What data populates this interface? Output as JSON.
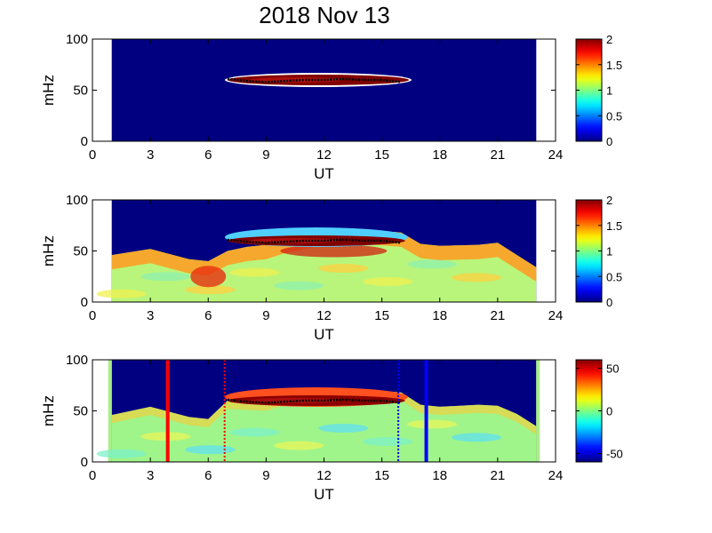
{
  "figure": {
    "title": "2018 Nov 13"
  },
  "chart_data": [
    {
      "type": "heatmap",
      "xlabel": "UT",
      "ylabel": "mHz",
      "xlim": [
        0,
        24
      ],
      "ylim": [
        0,
        100
      ],
      "xticks": [
        "0",
        "3",
        "6",
        "9",
        "12",
        "15",
        "18",
        "21",
        "24"
      ],
      "yticks": [
        "0",
        "50",
        "100"
      ],
      "data_range_ut": [
        1,
        23
      ],
      "colorbar": {
        "colormap": "jet",
        "range": [
          0,
          2
        ],
        "ticks": [
          "0",
          "0.5",
          "1",
          "1.5",
          "2"
        ]
      },
      "features": [
        {
          "kind": "band",
          "ut": [
            7.0,
            16.4
          ],
          "freq_center": 60,
          "value": 2.0
        }
      ],
      "trace": [
        [
          7.0,
          61
        ],
        [
          8.0,
          59
        ],
        [
          9.0,
          58
        ],
        [
          10.0,
          59
        ],
        [
          11.0,
          60
        ],
        [
          12.0,
          60
        ],
        [
          13.0,
          61
        ],
        [
          14.0,
          60
        ],
        [
          15.0,
          60
        ],
        [
          16.0,
          58
        ]
      ]
    },
    {
      "type": "heatmap",
      "xlabel": "UT",
      "ylabel": "mHz",
      "xlim": [
        0,
        24
      ],
      "ylim": [
        0,
        100
      ],
      "xticks": [
        "0",
        "3",
        "6",
        "9",
        "12",
        "15",
        "18",
        "21",
        "24"
      ],
      "yticks": [
        "0",
        "50",
        "100"
      ],
      "data_range_ut": [
        1,
        23
      ],
      "colorbar": {
        "colormap": "jet",
        "range": [
          0,
          2
        ],
        "ticks": [
          "0",
          "0.5",
          "1",
          "1.5",
          "2"
        ]
      },
      "features": [
        {
          "kind": "upper_boundary",
          "points": [
            [
              1,
              46
            ],
            [
              3,
              52
            ],
            [
              5,
              42
            ],
            [
              6,
              40
            ],
            [
              7,
              50
            ],
            [
              8,
              54
            ],
            [
              9,
              56
            ],
            [
              10,
              62
            ],
            [
              12,
              70
            ],
            [
              14,
              71
            ],
            [
              16,
              68
            ],
            [
              17,
              57
            ],
            [
              18,
              55
            ],
            [
              20,
              56
            ],
            [
              21,
              58
            ],
            [
              22,
              46
            ],
            [
              23,
              34
            ]
          ]
        },
        {
          "kind": "band",
          "ut": [
            7.0,
            16.2
          ],
          "freq_center": 60,
          "value": 2.0
        }
      ],
      "trace": [
        [
          7.0,
          61
        ],
        [
          8.0,
          59
        ],
        [
          9.0,
          58
        ],
        [
          10.0,
          59
        ],
        [
          11.0,
          60
        ],
        [
          12.0,
          60
        ],
        [
          13.0,
          61
        ],
        [
          14.0,
          60
        ],
        [
          15.0,
          60
        ],
        [
          16.0,
          58
        ]
      ]
    },
    {
      "type": "heatmap",
      "xlabel": "UT",
      "ylabel": "mHz",
      "xlim": [
        0,
        24
      ],
      "ylim": [
        0,
        100
      ],
      "xticks": [
        "0",
        "3",
        "6",
        "9",
        "12",
        "15",
        "18",
        "21",
        "24"
      ],
      "yticks": [
        "0",
        "50",
        "100"
      ],
      "data_range_ut": [
        1,
        23
      ],
      "colorbar": {
        "colormap": "jet",
        "range": [
          -60,
          60
        ],
        "ticks": [
          "50",
          "0",
          "-50"
        ]
      },
      "features": [
        {
          "kind": "upper_boundary",
          "points": [
            [
              1,
              46
            ],
            [
              3,
              54
            ],
            [
              5,
              44
            ],
            [
              6,
              42
            ],
            [
              7,
              60
            ],
            [
              9,
              58
            ],
            [
              10,
              64
            ],
            [
              12,
              72
            ],
            [
              14,
              71
            ],
            [
              16,
              68
            ],
            [
              17,
              56
            ],
            [
              18,
              54
            ],
            [
              20,
              56
            ],
            [
              21,
              55
            ],
            [
              22,
              47
            ],
            [
              23,
              35
            ]
          ]
        },
        {
          "kind": "band",
          "ut": [
            7.0,
            16.2
          ],
          "freq_center": 60,
          "value": 60
        }
      ],
      "vlines": [
        {
          "ut": 3.9,
          "style": "solid",
          "color": "#ff0000"
        },
        {
          "ut": 6.85,
          "style": "dotted",
          "color": "#ff0000"
        },
        {
          "ut": 15.85,
          "style": "dotted",
          "color": "#0000ff"
        },
        {
          "ut": 17.3,
          "style": "solid",
          "color": "#0000ff"
        }
      ],
      "trace": [
        [
          7.0,
          61
        ],
        [
          8.0,
          59
        ],
        [
          9.0,
          58
        ],
        [
          10.0,
          59
        ],
        [
          11.0,
          60
        ],
        [
          12.0,
          60
        ],
        [
          13.0,
          61
        ],
        [
          14.0,
          60
        ],
        [
          15.0,
          60
        ],
        [
          16.0,
          58
        ]
      ]
    }
  ]
}
